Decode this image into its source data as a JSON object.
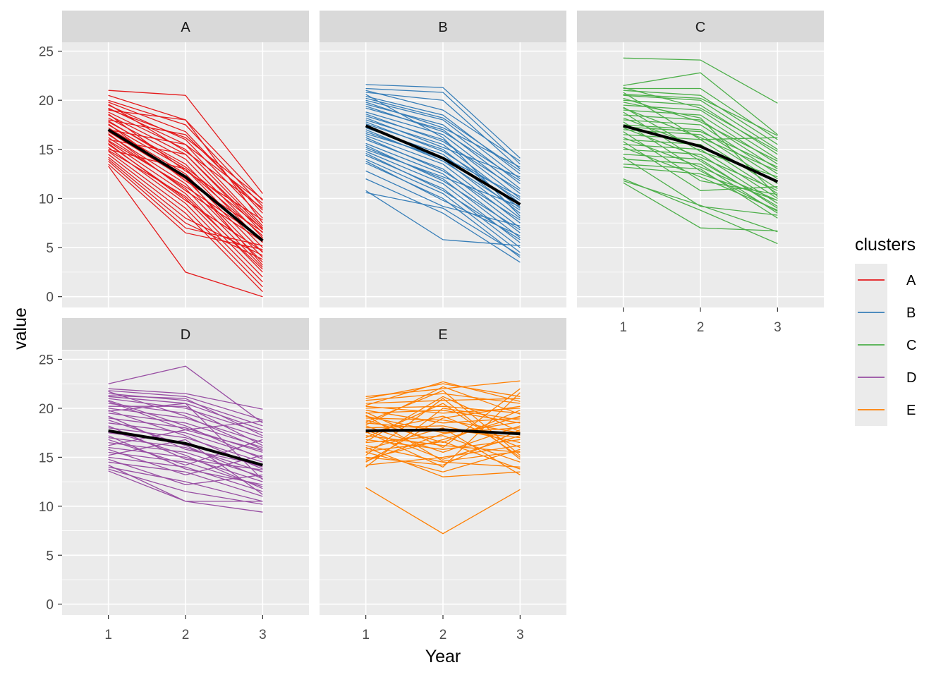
{
  "chart_data": {
    "type": "line",
    "facet_by": "clusters",
    "xlabel": "Year",
    "ylabel": "value",
    "x_ticks": [
      "1",
      "2",
      "3"
    ],
    "y_ticks": [
      "0",
      "5",
      "10",
      "15",
      "20",
      "25"
    ],
    "ylim": [
      -1.1,
      25.9
    ],
    "grid": true,
    "legend": {
      "title": "clusters",
      "position": "right"
    },
    "panels": [
      {
        "name": "A",
        "color": "#E41A1C",
        "mean": [
          17.0,
          12.2,
          5.7
        ],
        "lines": [
          [
            21.0,
            20.5,
            10.5
          ],
          [
            20.5,
            18.0,
            9.8
          ],
          [
            20.0,
            17.5,
            9.2
          ],
          [
            19.8,
            16.8,
            8.5
          ],
          [
            19.5,
            16.0,
            8.0
          ],
          [
            19.2,
            15.5,
            9.5
          ],
          [
            19.0,
            18.0,
            7.5
          ],
          [
            18.8,
            15.0,
            7.0
          ],
          [
            18.5,
            14.5,
            6.5
          ],
          [
            18.2,
            14.0,
            6.0
          ],
          [
            18.0,
            16.5,
            8.8
          ],
          [
            17.8,
            13.5,
            5.5
          ],
          [
            17.5,
            13.0,
            5.0
          ],
          [
            17.2,
            12.5,
            4.5
          ],
          [
            17.0,
            15.5,
            7.2
          ],
          [
            16.8,
            12.0,
            4.0
          ],
          [
            16.5,
            11.5,
            3.5
          ],
          [
            16.2,
            11.0,
            3.0
          ],
          [
            16.0,
            14.5,
            6.8
          ],
          [
            15.8,
            10.5,
            2.5
          ],
          [
            15.5,
            10.0,
            2.0
          ],
          [
            15.2,
            9.5,
            1.5
          ],
          [
            15.0,
            13.0,
            6.2
          ],
          [
            14.8,
            9.0,
            1.0
          ],
          [
            14.5,
            8.5,
            0.5
          ],
          [
            14.2,
            8.0,
            4.2
          ],
          [
            14.0,
            7.5,
            3.8
          ],
          [
            13.8,
            7.0,
            5.2
          ],
          [
            13.5,
            6.5,
            4.8
          ],
          [
            13.3,
            2.5,
            0.0
          ],
          [
            19.6,
            14.8,
            9.0
          ],
          [
            18.6,
            12.8,
            7.8
          ],
          [
            17.6,
            11.8,
            6.6
          ],
          [
            16.6,
            10.8,
            5.6
          ],
          [
            15.6,
            9.8,
            4.6
          ],
          [
            19.1,
            16.2,
            9.9
          ],
          [
            17.9,
            13.2,
            6.9
          ],
          [
            16.9,
            12.2,
            3.2
          ],
          [
            15.9,
            11.2,
            5.9
          ],
          [
            14.9,
            10.2,
            2.8
          ]
        ]
      },
      {
        "name": "B",
        "color": "#377EB8",
        "mean": [
          17.4,
          14.1,
          9.4
        ],
        "lines": [
          [
            21.6,
            21.3,
            14.1
          ],
          [
            21.2,
            20.8,
            13.5
          ],
          [
            20.8,
            20.0,
            13.0
          ],
          [
            20.4,
            18.5,
            12.5
          ],
          [
            20.0,
            18.0,
            12.0
          ],
          [
            19.6,
            17.5,
            11.5
          ],
          [
            19.2,
            17.0,
            11.0
          ],
          [
            18.8,
            16.5,
            10.5
          ],
          [
            18.4,
            16.0,
            10.0
          ],
          [
            18.0,
            15.5,
            9.5
          ],
          [
            17.6,
            15.0,
            9.0
          ],
          [
            17.2,
            14.5,
            8.5
          ],
          [
            16.8,
            14.0,
            8.0
          ],
          [
            16.4,
            13.5,
            7.5
          ],
          [
            16.0,
            13.0,
            7.0
          ],
          [
            15.6,
            12.5,
            6.5
          ],
          [
            15.2,
            12.0,
            6.0
          ],
          [
            14.8,
            11.5,
            5.5
          ],
          [
            14.4,
            11.0,
            5.0
          ],
          [
            14.0,
            10.5,
            4.5
          ],
          [
            13.6,
            10.0,
            4.0
          ],
          [
            12.0,
            8.5,
            3.5
          ],
          [
            10.6,
            9.0,
            4.2
          ],
          [
            10.8,
            5.8,
            5.2
          ],
          [
            21.0,
            19.0,
            13.8
          ],
          [
            20.2,
            18.2,
            12.8
          ],
          [
            19.4,
            16.8,
            11.8
          ],
          [
            18.6,
            15.8,
            10.8
          ],
          [
            17.8,
            14.8,
            9.8
          ],
          [
            17.0,
            13.8,
            8.8
          ],
          [
            16.2,
            12.8,
            7.8
          ],
          [
            15.4,
            11.8,
            6.8
          ],
          [
            14.6,
            10.8,
            5.8
          ],
          [
            13.8,
            9.8,
            6.2
          ],
          [
            12.8,
            9.2,
            7.2
          ],
          [
            19.8,
            17.2,
            13.2
          ],
          [
            18.2,
            15.2,
            12.2
          ],
          [
            16.6,
            14.2,
            10.2
          ],
          [
            15.0,
            12.2,
            9.2
          ],
          [
            20.6,
            16.2,
            8.2
          ]
        ]
      },
      {
        "name": "C",
        "color": "#4DAF4A",
        "mean": [
          17.4,
          15.3,
          11.7
        ],
        "lines": [
          [
            24.3,
            24.1,
            19.7
          ],
          [
            21.5,
            22.8,
            16.5
          ],
          [
            21.2,
            21.2,
            16.0
          ],
          [
            21.0,
            20.5,
            15.5
          ],
          [
            20.5,
            20.0,
            15.0
          ],
          [
            20.0,
            19.5,
            14.5
          ],
          [
            19.5,
            19.0,
            14.0
          ],
          [
            19.0,
            18.5,
            13.5
          ],
          [
            18.5,
            18.0,
            13.0
          ],
          [
            18.0,
            17.5,
            12.5
          ],
          [
            17.5,
            17.0,
            12.0
          ],
          [
            17.0,
            16.5,
            11.5
          ],
          [
            16.5,
            16.0,
            11.0
          ],
          [
            16.0,
            15.5,
            10.5
          ],
          [
            15.5,
            15.0,
            10.0
          ],
          [
            15.0,
            14.5,
            9.5
          ],
          [
            14.5,
            14.0,
            9.0
          ],
          [
            14.0,
            13.5,
            8.5
          ],
          [
            13.5,
            13.0,
            8.0
          ],
          [
            13.2,
            12.5,
            9.8
          ],
          [
            11.8,
            9.3,
            6.6
          ],
          [
            11.6,
            7.0,
            6.7
          ],
          [
            12.0,
            8.8,
            5.4
          ],
          [
            14.2,
            9.2,
            8.3
          ],
          [
            20.8,
            16.0,
            16.2
          ],
          [
            20.2,
            17.8,
            13.8
          ],
          [
            19.2,
            16.2,
            12.8
          ],
          [
            18.2,
            15.2,
            11.8
          ],
          [
            17.2,
            14.2,
            10.8
          ],
          [
            16.2,
            13.2,
            9.8
          ],
          [
            15.2,
            12.2,
            8.8
          ],
          [
            21.3,
            19.2,
            14.8
          ],
          [
            19.8,
            18.2,
            10.2
          ],
          [
            18.8,
            13.8,
            9.2
          ],
          [
            17.8,
            12.8,
            8.7
          ],
          [
            16.8,
            11.8,
            10.4
          ],
          [
            15.8,
            10.8,
            11.2
          ],
          [
            20.6,
            20.2,
            16.4
          ],
          [
            19.3,
            14.8,
            12.2
          ],
          [
            17.3,
            16.8,
            13.2
          ]
        ]
      },
      {
        "name": "D",
        "color": "#984EA3",
        "mean": [
          17.7,
          16.4,
          14.2
        ],
        "lines": [
          [
            22.5,
            24.3,
            18.5
          ],
          [
            22.0,
            21.5,
            19.9
          ],
          [
            21.8,
            21.2,
            18.8
          ],
          [
            21.5,
            20.8,
            18.2
          ],
          [
            21.2,
            20.5,
            17.8
          ],
          [
            21.0,
            20.0,
            17.5
          ],
          [
            20.5,
            19.5,
            17.0
          ],
          [
            20.0,
            19.0,
            16.5
          ],
          [
            19.5,
            18.5,
            16.0
          ],
          [
            19.0,
            18.0,
            15.5
          ],
          [
            18.5,
            17.5,
            15.0
          ],
          [
            18.0,
            17.0,
            14.5
          ],
          [
            17.5,
            16.5,
            14.0
          ],
          [
            17.0,
            16.0,
            13.5
          ],
          [
            16.5,
            15.5,
            13.0
          ],
          [
            16.0,
            15.0,
            12.5
          ],
          [
            15.5,
            14.5,
            12.0
          ],
          [
            15.0,
            14.0,
            11.5
          ],
          [
            14.5,
            13.5,
            11.0
          ],
          [
            14.0,
            12.5,
            10.5
          ],
          [
            13.8,
            11.5,
            10.2
          ],
          [
            13.6,
            10.5,
            9.4
          ],
          [
            14.2,
            10.5,
            10.5
          ],
          [
            21.7,
            19.2,
            15.8
          ],
          [
            20.8,
            18.2,
            14.8
          ],
          [
            19.8,
            17.2,
            13.8
          ],
          [
            18.8,
            16.2,
            12.8
          ],
          [
            17.8,
            15.2,
            11.8
          ],
          [
            16.8,
            14.2,
            16.8
          ],
          [
            15.8,
            13.2,
            15.2
          ],
          [
            14.8,
            12.2,
            13.2
          ],
          [
            21.3,
            21.0,
            17.2
          ],
          [
            20.2,
            20.2,
            16.2
          ],
          [
            19.2,
            15.8,
            14.2
          ],
          [
            18.2,
            14.8,
            13.7
          ],
          [
            17.2,
            13.8,
            12.2
          ],
          [
            16.2,
            17.8,
            15.7
          ],
          [
            15.2,
            16.8,
            11.2
          ],
          [
            20.7,
            17.8,
            18.7
          ],
          [
            19.7,
            20.5,
            12.7
          ]
        ]
      },
      {
        "name": "E",
        "color": "#FF7F00",
        "mean": [
          17.7,
          17.8,
          17.4
        ],
        "lines": [
          [
            21.2,
            22.0,
            22.8
          ],
          [
            21.0,
            22.5,
            21.2
          ],
          [
            20.8,
            21.5,
            20.5
          ],
          [
            20.5,
            20.8,
            21.0
          ],
          [
            20.2,
            19.5,
            20.0
          ],
          [
            20.0,
            20.2,
            19.5
          ],
          [
            19.8,
            18.5,
            19.0
          ],
          [
            19.5,
            19.8,
            18.5
          ],
          [
            19.2,
            17.5,
            18.0
          ],
          [
            19.0,
            18.8,
            17.5
          ],
          [
            18.8,
            16.5,
            19.8
          ],
          [
            18.5,
            17.8,
            17.0
          ],
          [
            18.2,
            15.5,
            18.2
          ],
          [
            18.0,
            18.2,
            16.5
          ],
          [
            17.8,
            14.8,
            17.2
          ],
          [
            17.5,
            19.2,
            16.0
          ],
          [
            17.2,
            16.2,
            15.5
          ],
          [
            17.0,
            20.5,
            15.0
          ],
          [
            16.8,
            15.8,
            16.8
          ],
          [
            16.5,
            17.2,
            14.5
          ],
          [
            16.2,
            14.5,
            14.0
          ],
          [
            16.0,
            13.0,
            13.5
          ],
          [
            15.8,
            18.0,
            13.2
          ],
          [
            15.5,
            13.5,
            15.8
          ],
          [
            15.2,
            21.0,
            14.8
          ],
          [
            15.0,
            14.2,
            17.8
          ],
          [
            14.8,
            16.8,
            19.2
          ],
          [
            14.5,
            19.0,
            20.2
          ],
          [
            14.2,
            15.0,
            16.2
          ],
          [
            14.0,
            20.0,
            18.8
          ],
          [
            11.9,
            7.2,
            11.7
          ],
          [
            20.3,
            22.7,
            20.7
          ],
          [
            19.6,
            16.0,
            22.0
          ],
          [
            18.6,
            21.8,
            15.2
          ],
          [
            17.6,
            14.0,
            21.6
          ],
          [
            16.6,
            21.2,
            17.6
          ],
          [
            15.6,
            16.6,
            13.8
          ],
          [
            14.6,
            17.4,
            18.6
          ],
          [
            19.3,
            14.6,
            15.6
          ],
          [
            18.3,
            22.2,
            19.4
          ]
        ]
      }
    ]
  }
}
